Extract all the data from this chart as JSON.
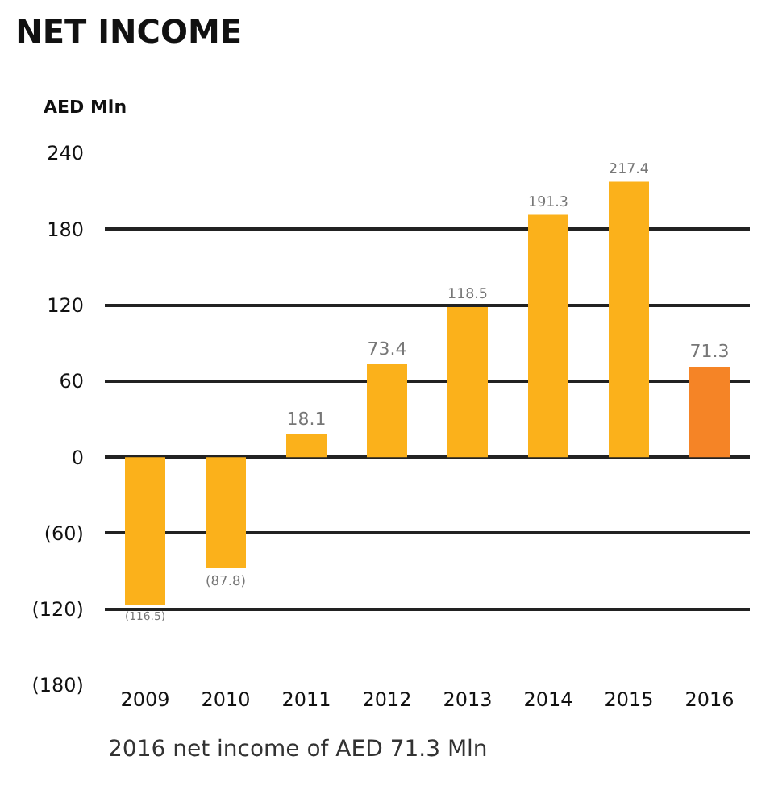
{
  "chart_data": {
    "type": "bar",
    "title": "NET INCOME",
    "ylabel": "AED Mln",
    "categories": [
      "2009",
      "2010",
      "2011",
      "2012",
      "2013",
      "2014",
      "2015",
      "2016"
    ],
    "values": [
      -116.5,
      -87.8,
      18.1,
      73.4,
      118.5,
      191.3,
      217.4,
      71.3
    ],
    "value_labels": [
      "(116.5)",
      "(87.8)",
      "18.1",
      "73.4",
      "118.5",
      "191.3",
      "217.4",
      "71.3"
    ],
    "colors": [
      "#fbb11b",
      "#fbb11b",
      "#fbb11b",
      "#fbb11b",
      "#fbb11b",
      "#fbb11b",
      "#fbb11b",
      "#f58426"
    ],
    "ylim": [
      -180,
      240
    ],
    "yticks": [
      {
        "value": -180,
        "label": "(180)"
      },
      {
        "value": -120,
        "label": "(120)"
      },
      {
        "value": -60,
        "label": "(60)"
      },
      0,
      60,
      120,
      180,
      240
    ],
    "grid": "y",
    "annotations": [
      "2016 net income of AED 71.3 Mln"
    ]
  }
}
